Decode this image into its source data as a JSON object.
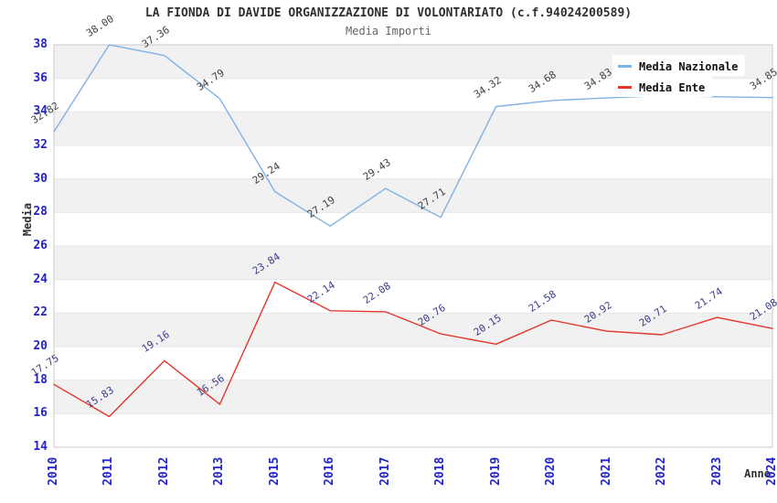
{
  "title": "LA FIONDA DI DAVIDE ORGANIZZAZIONE DI VOLONTARIATO (c.f.94024200589)",
  "subtitle": "Media Importi",
  "colors": {
    "nazionale": "#7FB2E5",
    "ente": "#E5362B",
    "axis_tick": "#2323CB",
    "label_nazionale": "#3F3F3F",
    "label_ente": "#3C3C8C",
    "band": "#F1F1F1",
    "grid": "#E7E7E7",
    "plot_border": "#C8C8C8",
    "title": "#303030",
    "subtitle": "#666666"
  },
  "legend": [
    {
      "label": "Media Nazionale",
      "color": "#7FB2E5"
    },
    {
      "label": "Media Ente",
      "color": "#E5362B"
    }
  ],
  "axes": {
    "y_label": "Media",
    "x_label": "Anno",
    "y_ticks": [
      38,
      36,
      34,
      32,
      30,
      28,
      26,
      24,
      22,
      20,
      18,
      16,
      14
    ],
    "ylim": [
      14,
      38
    ]
  },
  "chart_data": {
    "type": "line",
    "title": "LA FIONDA DI DAVIDE ORGANIZZAZIONE DI VOLONTARIATO (c.f.94024200589)",
    "subtitle": "Media Importi",
    "xlabel": "Anno",
    "ylabel": "Media",
    "ylim": [
      14,
      38
    ],
    "grid": "horizontal-bands",
    "legend_position": "top-right",
    "categories": [
      "2010",
      "2011",
      "2012",
      "2013",
      "2015",
      "2016",
      "2017",
      "2018",
      "2019",
      "2020",
      "2021",
      "2022",
      "2023",
      "2024"
    ],
    "series": [
      {
        "name": "Media Nazionale",
        "color": "#7FB2E5",
        "values": [
          32.82,
          38.0,
          37.36,
          34.79,
          29.24,
          27.19,
          29.43,
          27.71,
          34.32,
          34.68,
          34.83,
          34.97,
          34.9,
          34.85
        ],
        "point_labels": [
          "32.82",
          "38.00",
          "37.36",
          "34.79",
          "29.24",
          "27.19",
          "29.43",
          "27.71",
          "34.32",
          "34.68",
          "34.83",
          null,
          null,
          "34.85"
        ],
        "label_color": "#3F3F3F"
      },
      {
        "name": "Media Ente",
        "color": "#E5362B",
        "values": [
          17.75,
          15.83,
          19.16,
          16.56,
          23.84,
          22.14,
          22.08,
          20.76,
          20.15,
          21.58,
          20.92,
          20.71,
          21.74,
          21.08
        ],
        "point_labels": [
          "17.75",
          "15.83",
          "19.16",
          "16.56",
          "23.84",
          "22.14",
          "22.08",
          "20.76",
          "20.15",
          "21.58",
          "20.92",
          "20.71",
          "21.74",
          "21.08"
        ],
        "label_color": "#3C3C8C"
      }
    ]
  }
}
